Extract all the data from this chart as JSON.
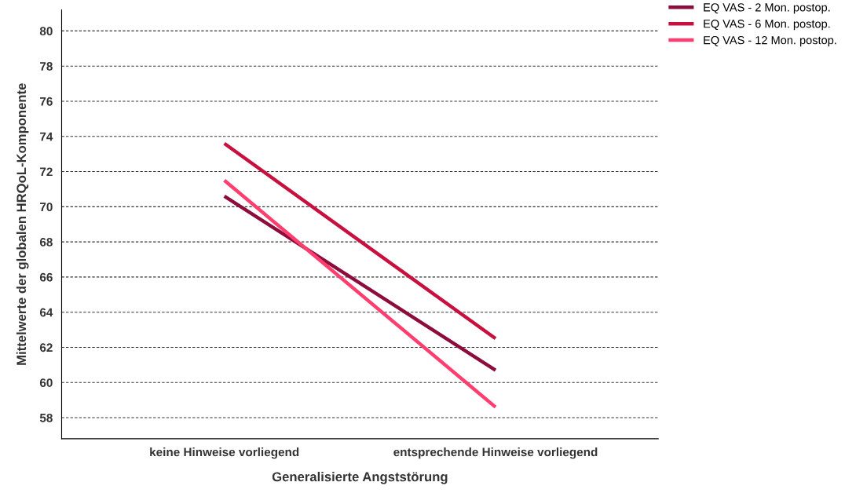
{
  "chart_data": {
    "type": "line",
    "xlabel": "Generalisierte Angststörung",
    "ylabel": "Mittelwerte der globalen HRQoL-Komponente",
    "categories": [
      "keine Hinweise vorliegend",
      "entsprechende Hinweise vorliegend"
    ],
    "series": [
      {
        "name": "EQ VAS - 2 Mon. postop.",
        "color": "#8c0d3c",
        "values": [
          70.6,
          60.7
        ]
      },
      {
        "name": "EQ VAS - 6 Mon. postop.",
        "color": "#c8103f",
        "values": [
          73.6,
          62.5
        ]
      },
      {
        "name": "EQ VAS - 12 Mon. postop.",
        "color": "#ff3d6e",
        "values": [
          71.5,
          58.6
        ]
      }
    ],
    "ylim": [
      56.8,
      81.2
    ],
    "yticks": [
      58,
      60,
      62,
      64,
      66,
      68,
      70,
      72,
      74,
      76,
      78,
      80
    ],
    "grid": "y",
    "legend": "top right",
    "marker": "none",
    "line_style": "solid"
  }
}
